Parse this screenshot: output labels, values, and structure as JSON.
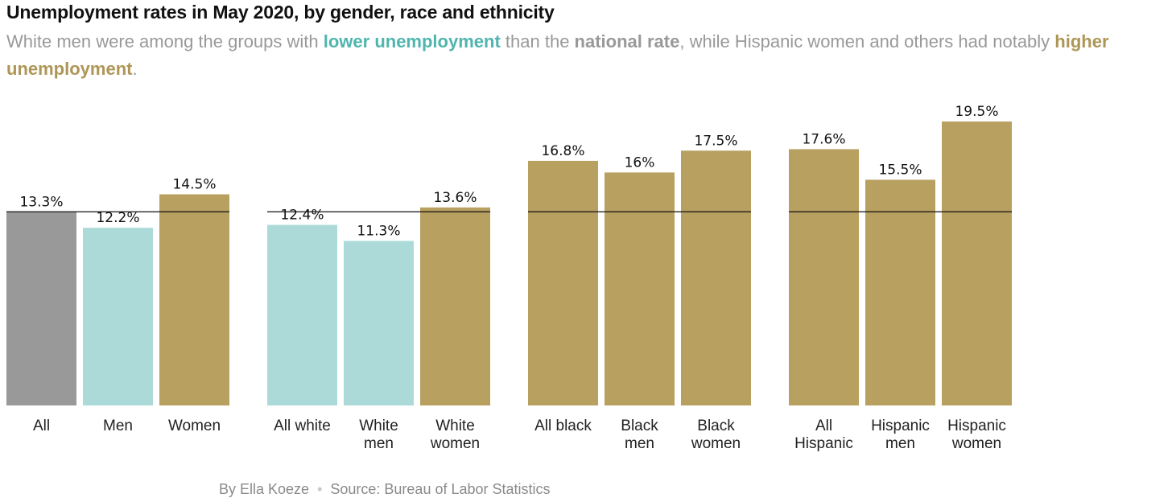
{
  "header": {
    "title": "Unemployment rates in May 2020, by gender, race and ethnicity",
    "subtitle": {
      "part1": "White men were among the groups with ",
      "lower": "lower unemployment",
      "part2": " than the ",
      "national": "national rate",
      "part3": ", while Hispanic women and others had notably ",
      "higher": "higher unemployment",
      "part4": "."
    }
  },
  "footer": {
    "byline": "By Ella Koeze",
    "separator": "•",
    "source": "Source: Bureau of Labor Statistics"
  },
  "colors": {
    "national": "#999999",
    "lower": "#acdad9",
    "higher": "#b8a060",
    "reference_line": "#111111"
  },
  "chart_data": {
    "type": "bar",
    "title": "Unemployment rates in May 2020, by gender, race and ethnicity",
    "unit": "%",
    "reference_value": 13.3,
    "ylim": [
      0,
      19.5
    ],
    "grid": false,
    "groups": [
      {
        "bars": [
          {
            "label": [
              "All"
            ],
            "value": 13.3,
            "label_text": "13.3%",
            "category": "national"
          },
          {
            "label": [
              "Men"
            ],
            "value": 12.2,
            "label_text": "12.2%",
            "category": "lower"
          },
          {
            "label": [
              "Women"
            ],
            "value": 14.5,
            "label_text": "14.5%",
            "category": "higher"
          }
        ]
      },
      {
        "bars": [
          {
            "label": [
              "All white"
            ],
            "value": 12.4,
            "label_text": "12.4%",
            "category": "lower"
          },
          {
            "label": [
              "White",
              "men"
            ],
            "value": 11.3,
            "label_text": "11.3%",
            "category": "lower"
          },
          {
            "label": [
              "White",
              "women"
            ],
            "value": 13.6,
            "label_text": "13.6%",
            "category": "higher"
          }
        ]
      },
      {
        "bars": [
          {
            "label": [
              "All black"
            ],
            "value": 16.8,
            "label_text": "16.8%",
            "category": "higher"
          },
          {
            "label": [
              "Black",
              "men"
            ],
            "value": 16.0,
            "label_text": "16%",
            "category": "higher"
          },
          {
            "label": [
              "Black",
              "women"
            ],
            "value": 17.5,
            "label_text": "17.5%",
            "category": "higher"
          }
        ]
      },
      {
        "bars": [
          {
            "label": [
              "All",
              "Hispanic"
            ],
            "value": 17.6,
            "label_text": "17.6%",
            "category": "higher"
          },
          {
            "label": [
              "Hispanic",
              "men"
            ],
            "value": 15.5,
            "label_text": "15.5%",
            "category": "higher"
          },
          {
            "label": [
              "Hispanic",
              "women"
            ],
            "value": 19.5,
            "label_text": "19.5%",
            "category": "higher"
          }
        ]
      }
    ]
  }
}
